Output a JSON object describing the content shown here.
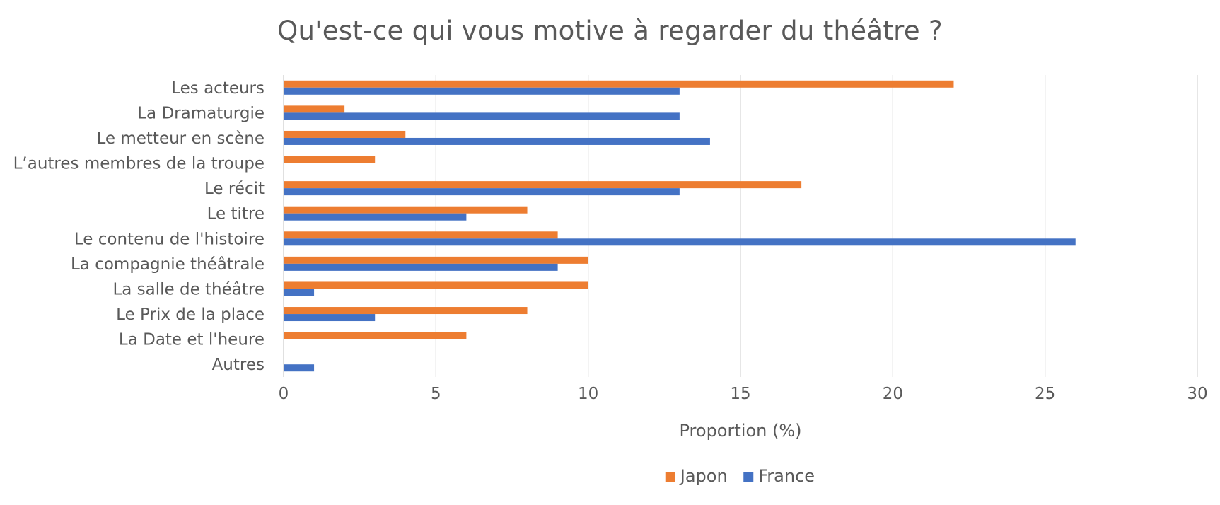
{
  "chart_data": {
    "type": "bar",
    "orientation": "horizontal",
    "title": "Qu'est-ce qui vous motive à regarder du théâtre ?",
    "xlabel": "Proportion (%)",
    "ylabel": "",
    "xlim": [
      0,
      30
    ],
    "x_ticks": [
      0,
      5,
      10,
      15,
      20,
      25,
      30
    ],
    "grid": true,
    "legend_position": "bottom",
    "categories": [
      "Les acteurs",
      "La Dramaturgie",
      "Le metteur en scène",
      "L’autres membres de la troupe",
      "Le récit",
      "Le titre",
      "Le contenu de l'histoire",
      "La compagnie théâtrale",
      "La salle de théâtre",
      "Le Prix de la place",
      "La Date et l'heure",
      "Autres"
    ],
    "series": [
      {
        "name": "Japon",
        "color": "#ED7D31",
        "values": [
          22,
          2,
          4,
          3,
          17,
          8,
          9,
          10,
          10,
          8,
          6,
          0
        ]
      },
      {
        "name": "France",
        "color": "#4472C4",
        "values": [
          13,
          13,
          14,
          0,
          13,
          6,
          26,
          9,
          1,
          3,
          0,
          1
        ]
      }
    ]
  }
}
